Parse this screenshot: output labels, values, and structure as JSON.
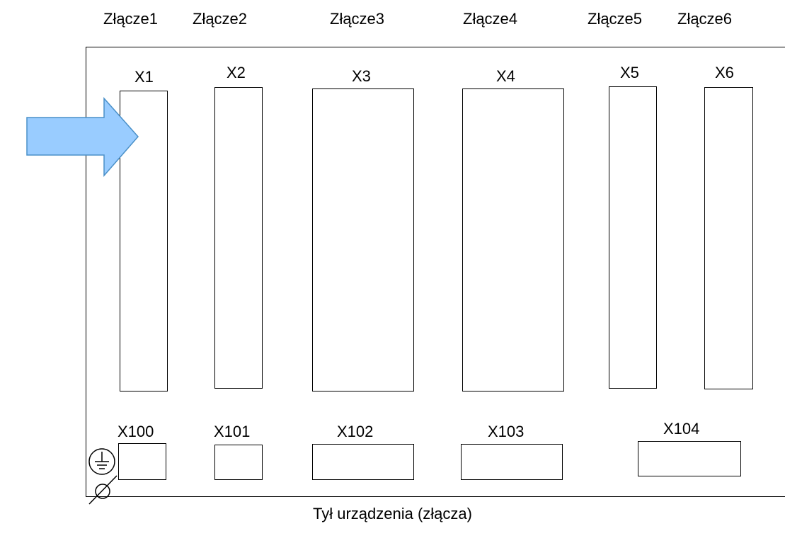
{
  "connector_groups": [
    {
      "group": "Złącze1",
      "main": "X1",
      "bottom": "X100"
    },
    {
      "group": "Złącze2",
      "main": "X2",
      "bottom": "X101"
    },
    {
      "group": "Złącze3",
      "main": "X3",
      "bottom": "X102"
    },
    {
      "group": "Złącze4",
      "main": "X4",
      "bottom": "X103"
    },
    {
      "group": "Złącze5",
      "main": "X5",
      "bottom": "X104"
    },
    {
      "group": "Złącze6",
      "main": "X6"
    }
  ],
  "caption": "Tył urządzenia (złącza)",
  "icons": {
    "arrow": "arrow-right-icon",
    "ground": "protective-earth-icon",
    "diameter": "diameter-icon"
  },
  "colors": {
    "arrow_fill": "#99ccff",
    "arrow_stroke": "#4a90c8",
    "line": "#000000"
  }
}
